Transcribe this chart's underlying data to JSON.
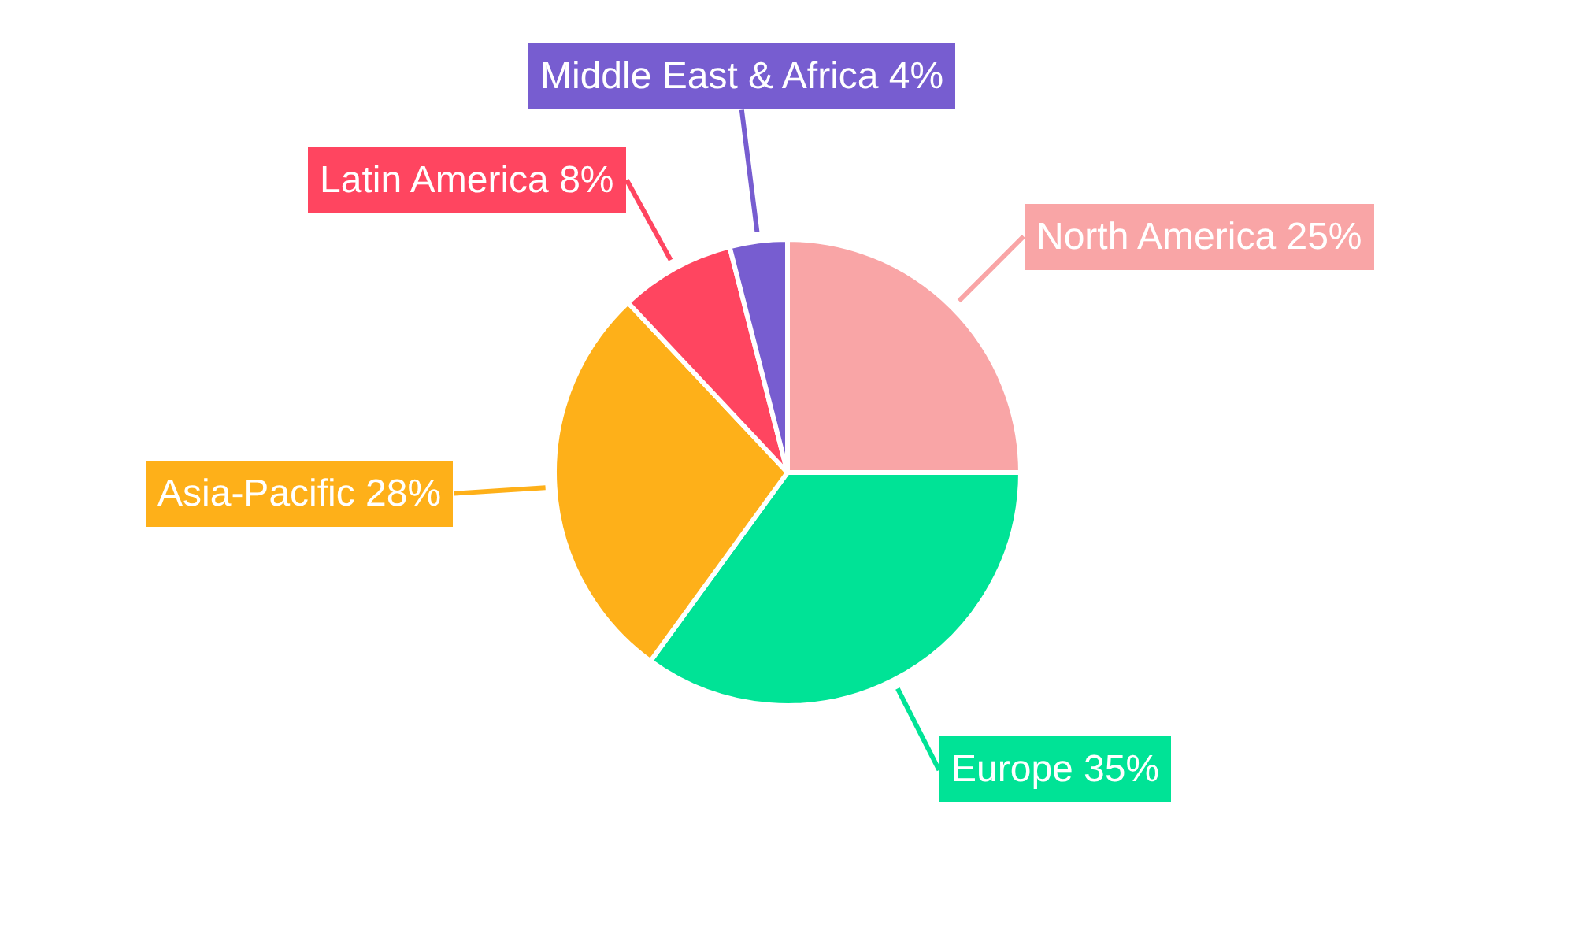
{
  "chart_data": {
    "type": "pie",
    "categories": [
      "North America",
      "Europe",
      "Asia-Pacific",
      "Latin America",
      "Middle East & Africa"
    ],
    "values": [
      25,
      35,
      28,
      8,
      4
    ],
    "value_labels": [
      "25%",
      "35%",
      "28%",
      "8%",
      "4%"
    ],
    "colors": [
      "#f9a5a6",
      "#00e396",
      "#feb019",
      "#ff4560",
      "#775dd0"
    ]
  }
}
